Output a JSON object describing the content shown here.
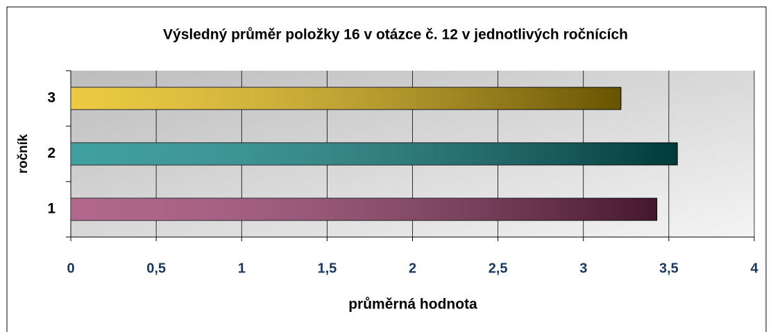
{
  "chart_data": {
    "type": "barh",
    "title": "Výsledný průměr položky  16  v otázce č. 12  v  jednotlivých  ročnících",
    "xlabel": "průměrná hodnota",
    "ylabel": "ročník",
    "categories": [
      "1",
      "2",
      "3"
    ],
    "values": [
      3.43,
      3.55,
      3.22
    ],
    "colors": [
      "#993366",
      "#008080",
      "#e6b800"
    ],
    "xlim": [
      0,
      4
    ],
    "xticks": [
      0,
      {
        "value": 0.5,
        "label": "0,5"
      },
      1,
      {
        "value": 1.5,
        "label": "1,5"
      },
      2,
      {
        "value": 2.5,
        "label": "2,5"
      },
      3,
      {
        "value": 3.5,
        "label": "3,5"
      },
      4
    ],
    "grid": true
  }
}
